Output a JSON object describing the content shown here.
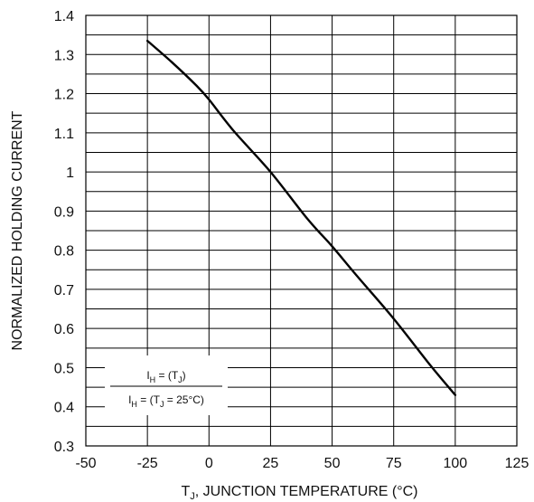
{
  "chart_data": {
    "type": "line",
    "title": "",
    "xlabel": "T_J, JUNCTION TEMPERATURE (°C)",
    "ylabel": "NORMALIZED HOLDING CURRENT",
    "xlim": [
      -50,
      125
    ],
    "ylim": [
      0.3,
      1.4
    ],
    "xticks": [
      "-50",
      "-25",
      "0",
      "25",
      "50",
      "75",
      "100",
      "125"
    ],
    "yticks": [
      "0.3",
      "0.4",
      "0.5",
      "0.6",
      "0.7",
      "0.8",
      "0.9",
      "1",
      "1.1",
      "1.2",
      "1.3",
      "1.4"
    ],
    "grid": true,
    "series": [
      {
        "x": [
          -25,
          -15,
          -5,
          0,
          10,
          25,
          40,
          50,
          60,
          75,
          90,
          100
        ],
        "y": [
          1.335,
          1.28,
          1.22,
          1.185,
          1.105,
          1.0,
          0.88,
          0.81,
          0.735,
          0.625,
          0.505,
          0.43
        ]
      }
    ],
    "annotation": {
      "numerator_main": "I",
      "numerator_sub": "H",
      "numerator_rest_1": " = (T",
      "numerator_rest_sub": "J",
      "numerator_rest_2": ")",
      "denominator_main": "I",
      "denominator_sub": "H",
      "denominator_rest_1": " = (T",
      "denominator_rest_sub": "J",
      "denominator_rest_2": " = 25°C)"
    },
    "xlabel_parts": {
      "t": "T",
      "sub": "J",
      "rest": ", JUNCTION TEMPERATURE (°C)"
    }
  }
}
